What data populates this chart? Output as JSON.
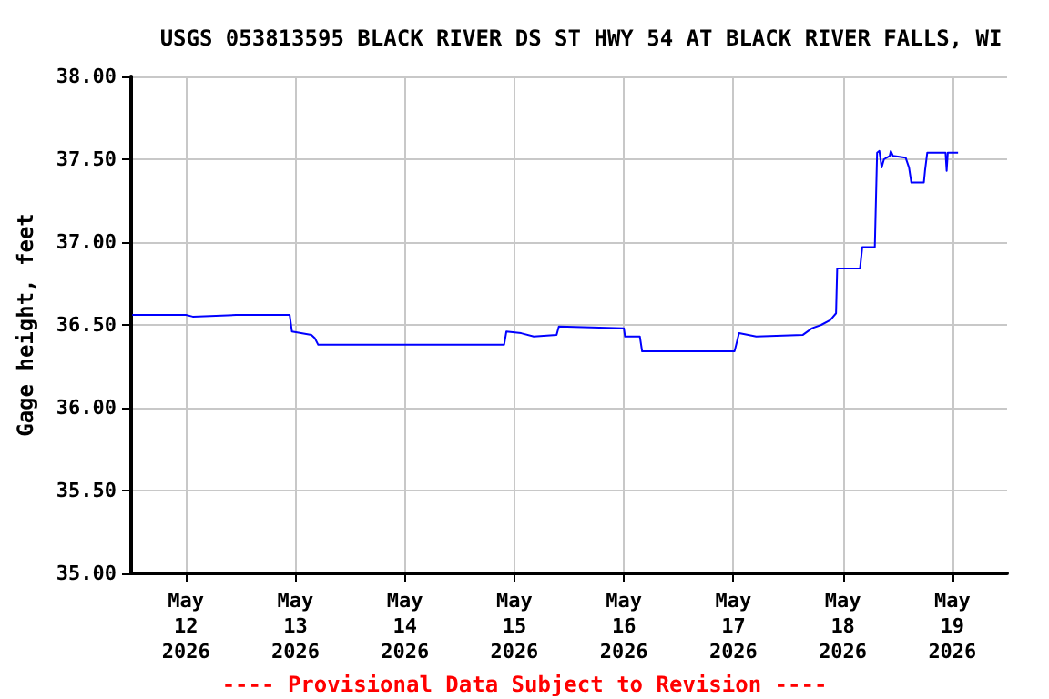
{
  "chart_data": {
    "type": "line",
    "title": "USGS 053813595 BLACK RIVER DS ST HWY 54 AT BLACK RIVER FALLS, WI",
    "ylabel": "Gage height, feet",
    "annotations": [
      "---- Provisional Data Subject to Revision ----"
    ],
    "series": [
      {
        "color": "#0000ff",
        "x": [
          "2026-05-11T12:15",
          "2026-05-12T00:00",
          "2026-05-12T01:30",
          "2026-05-12T11:00",
          "2026-05-12T22:45",
          "2026-05-12T23:15",
          "2026-05-13T01:15",
          "2026-05-13T03:30",
          "2026-05-13T04:15",
          "2026-05-13T05:00",
          "2026-05-14T21:45",
          "2026-05-14T22:15",
          "2026-05-15T01:30",
          "2026-05-15T04:15",
          "2026-05-15T09:15",
          "2026-05-15T09:45",
          "2026-05-16T00:00",
          "2026-05-16T00:15",
          "2026-05-16T03:30",
          "2026-05-16T04:00",
          "2026-05-17T00:15",
          "2026-05-17T01:15",
          "2026-05-17T05:00",
          "2026-05-17T15:15",
          "2026-05-17T17:15",
          "2026-05-17T19:15",
          "2026-05-17T21:15",
          "2026-05-17T22:30",
          "2026-05-17T22:45",
          "2026-05-18T03:45",
          "2026-05-18T04:15",
          "2026-05-18T07:00",
          "2026-05-18T07:30",
          "2026-05-18T08:00",
          "2026-05-18T08:30",
          "2026-05-18T09:00",
          "2026-05-18T10:15",
          "2026-05-18T10:30",
          "2026-05-18T11:00",
          "2026-05-18T13:45",
          "2026-05-18T14:30",
          "2026-05-18T15:00",
          "2026-05-18T17:45",
          "2026-05-18T18:00",
          "2026-05-18T18:30",
          "2026-05-18T22:30",
          "2026-05-18T22:45",
          "2026-05-18T23:00",
          "2026-05-19T01:15"
        ],
        "values": [
          36.56,
          36.56,
          36.55,
          36.56,
          36.56,
          36.46,
          36.45,
          36.44,
          36.42,
          36.38,
          36.38,
          36.46,
          36.45,
          36.43,
          36.44,
          36.49,
          36.48,
          36.43,
          36.43,
          36.34,
          36.34,
          36.45,
          36.43,
          36.44,
          36.48,
          36.5,
          36.53,
          36.57,
          36.84,
          36.84,
          36.97,
          36.97,
          37.54,
          37.55,
          37.45,
          37.5,
          37.52,
          37.55,
          37.52,
          37.51,
          37.45,
          37.36,
          37.36,
          37.43,
          37.54,
          37.54,
          37.43,
          37.54,
          37.54
        ]
      }
    ],
    "xlim": [
      "2026-05-11T12:00",
      "2026-05-19T12:00"
    ],
    "xticks": [
      {
        "value": "2026-05-12",
        "label": "May\n12\n2026"
      },
      {
        "value": "2026-05-13",
        "label": "May\n13\n2026"
      },
      {
        "value": "2026-05-14",
        "label": "May\n14\n2026"
      },
      {
        "value": "2026-05-15",
        "label": "May\n15\n2026"
      },
      {
        "value": "2026-05-16",
        "label": "May\n16\n2026"
      },
      {
        "value": "2026-05-17",
        "label": "May\n17\n2026"
      },
      {
        "value": "2026-05-18",
        "label": "May\n18\n2026"
      },
      {
        "value": "2026-05-19",
        "label": "May\n19\n2026"
      }
    ],
    "ylim": [
      35,
      38
    ],
    "yticks": [
      {
        "value": 35,
        "label": "35.00"
      },
      {
        "value": 35.5,
        "label": "35.50"
      },
      {
        "value": 36,
        "label": "36.00"
      },
      {
        "value": 36.5,
        "label": "36.50"
      },
      {
        "value": 37,
        "label": "37.00"
      },
      {
        "value": 37.5,
        "label": "37.50"
      },
      {
        "value": 38,
        "label": "38.00"
      }
    ],
    "grid": true,
    "marker": "none",
    "line_style": "solid"
  }
}
